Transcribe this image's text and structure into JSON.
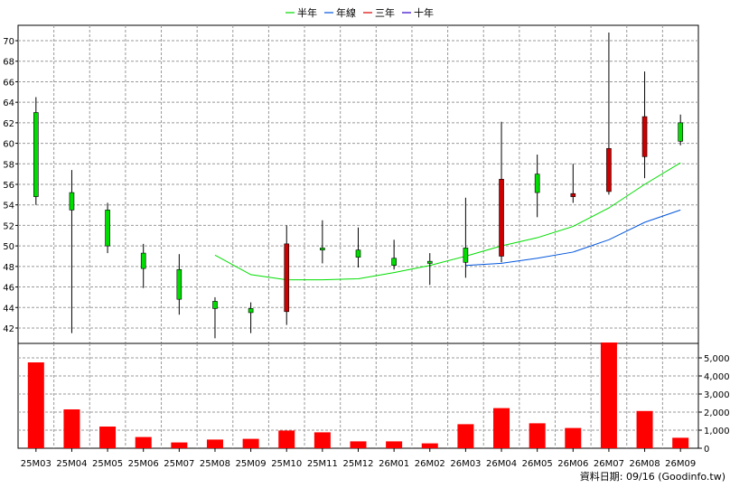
{
  "legend": [
    {
      "label": "半年",
      "color": "#00dd00"
    },
    {
      "label": "年線",
      "color": "#0055dd"
    },
    {
      "label": "三年",
      "color": "#dd0000"
    },
    {
      "label": "十年",
      "color": "#3300cc"
    }
  ],
  "footer": "資料日期: 09/16  (Goodinfo.tw)",
  "colors": {
    "up_candle": "#00dd00",
    "down_candle": "#cc0000",
    "volume_bar": "#ff0000",
    "grid": "#999999"
  },
  "chart_data": {
    "type": "candlestick",
    "categories": [
      "25M03",
      "25M04",
      "25M05",
      "25M06",
      "25M07",
      "25M08",
      "25M09",
      "25M10",
      "25M11",
      "25M12",
      "26M01",
      "26M02",
      "26M03",
      "26M04",
      "26M05",
      "26M06",
      "26M07",
      "26M08",
      "26M09"
    ],
    "price_axis": {
      "ylim": [
        40.5,
        71.5
      ],
      "ticks": [
        42,
        44,
        46,
        48,
        50,
        52,
        54,
        56,
        58,
        60,
        62,
        64,
        66,
        68,
        70
      ],
      "grid": true
    },
    "volume_axis": {
      "ylim": [
        0,
        5800
      ],
      "ticks": [
        0,
        1000,
        2000,
        3000,
        4000,
        5000
      ],
      "tick_labels": [
        "0",
        "1,000",
        "2,000",
        "3,000",
        "4,000",
        "5,000"
      ]
    },
    "candles": [
      {
        "open": 63.0,
        "high": 64.5,
        "low": 54.0,
        "close": 54.8,
        "direction": "down"
      },
      {
        "open": 55.2,
        "high": 57.4,
        "low": 41.5,
        "close": 53.5,
        "direction": "down"
      },
      {
        "open": 53.5,
        "high": 54.2,
        "low": 49.3,
        "close": 50.0,
        "direction": "down"
      },
      {
        "open": 49.3,
        "high": 50.2,
        "low": 45.9,
        "close": 47.8,
        "direction": "down"
      },
      {
        "open": 47.7,
        "high": 49.2,
        "low": 43.3,
        "close": 44.8,
        "direction": "down"
      },
      {
        "open": 44.6,
        "high": 45.0,
        "low": 41.0,
        "close": 43.9,
        "direction": "down"
      },
      {
        "open": 43.9,
        "high": 44.5,
        "low": 41.5,
        "close": 43.5,
        "direction": "down"
      },
      {
        "open": 43.6,
        "high": 52.0,
        "low": 42.3,
        "close": 50.2,
        "direction": "up"
      },
      {
        "open": 49.8,
        "high": 52.5,
        "low": 48.3,
        "close": 49.6,
        "direction": "down"
      },
      {
        "open": 49.6,
        "high": 51.8,
        "low": 47.9,
        "close": 48.9,
        "direction": "down"
      },
      {
        "open": 48.8,
        "high": 50.6,
        "low": 47.7,
        "close": 48.1,
        "direction": "down"
      },
      {
        "open": 48.5,
        "high": 49.3,
        "low": 46.2,
        "close": 48.3,
        "direction": "down"
      },
      {
        "open": 49.8,
        "high": 54.7,
        "low": 46.9,
        "close": 48.4,
        "direction": "down"
      },
      {
        "open": 49.0,
        "high": 62.1,
        "low": 48.4,
        "close": 56.5,
        "direction": "up"
      },
      {
        "open": 57.0,
        "high": 58.9,
        "low": 52.8,
        "close": 55.2,
        "direction": "down"
      },
      {
        "open": 55.1,
        "high": 58.0,
        "low": 54.2,
        "close": 54.8,
        "direction": "up"
      },
      {
        "open": 55.3,
        "high": 70.8,
        "low": 55.0,
        "close": 59.5,
        "direction": "up"
      },
      {
        "open": 58.7,
        "high": 67.0,
        "low": 56.6,
        "close": 62.6,
        "direction": "up"
      },
      {
        "open": 62.0,
        "high": 62.8,
        "low": 59.8,
        "close": 60.2,
        "direction": "down"
      }
    ],
    "volume": [
      4750,
      2150,
      1200,
      620,
      320,
      480,
      520,
      980,
      880,
      380,
      380,
      270,
      1330,
      2220,
      1380,
      1120,
      5850,
      2060,
      580
    ],
    "series": [
      {
        "name": "半年",
        "values": [
          null,
          null,
          null,
          null,
          null,
          49.1,
          47.2,
          46.7,
          46.7,
          46.8,
          47.4,
          48.1,
          49.0,
          50.0,
          50.8,
          51.9,
          53.7,
          56.0,
          58.1
        ]
      },
      {
        "name": "年線",
        "values": [
          null,
          null,
          null,
          null,
          null,
          null,
          null,
          null,
          null,
          null,
          null,
          null,
          48.1,
          48.3,
          48.8,
          49.4,
          50.6,
          52.3,
          53.5
        ]
      }
    ]
  }
}
